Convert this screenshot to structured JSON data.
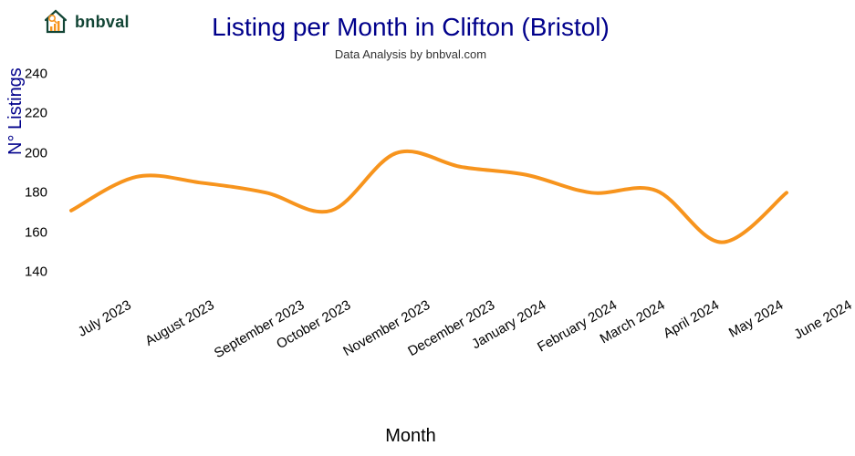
{
  "brand": {
    "name": "bnbval"
  },
  "chart": {
    "type": "line",
    "title": "Listing per Month in Clifton (Bristol)",
    "subtitle": "Data Analysis by bnbval.com",
    "xlabel": "Month",
    "ylabel": "N° Listings",
    "title_color": "#00008b",
    "title_fontsize": 28,
    "subtitle_fontsize": 13,
    "xlabel_fontsize": 20,
    "ylabel_fontsize": 20,
    "ylabel_color": "#00008b",
    "line_color": "#f7941d",
    "line_width": 4,
    "background_color": "#ffffff",
    "smoothing": "spline",
    "categories": [
      "July 2023",
      "August 2023",
      "September 2023",
      "October 2023",
      "November 2023",
      "December 2023",
      "January 2024",
      "February 2024",
      "March 2024",
      "April 2024",
      "May 2024",
      "June 2024"
    ],
    "values": [
      171,
      188,
      185,
      180,
      171,
      200,
      193,
      189,
      180,
      181,
      155,
      180
    ],
    "ylim": [
      130,
      245
    ],
    "yticks": [
      140,
      160,
      180,
      200,
      220,
      240
    ],
    "tick_fontsize": 15,
    "xtick_rotation": -30
  },
  "logo": {
    "roof_color": "#124535",
    "wall_color": "#124535",
    "bars_color": "#f7941d",
    "lens_color": "#f7941d"
  }
}
